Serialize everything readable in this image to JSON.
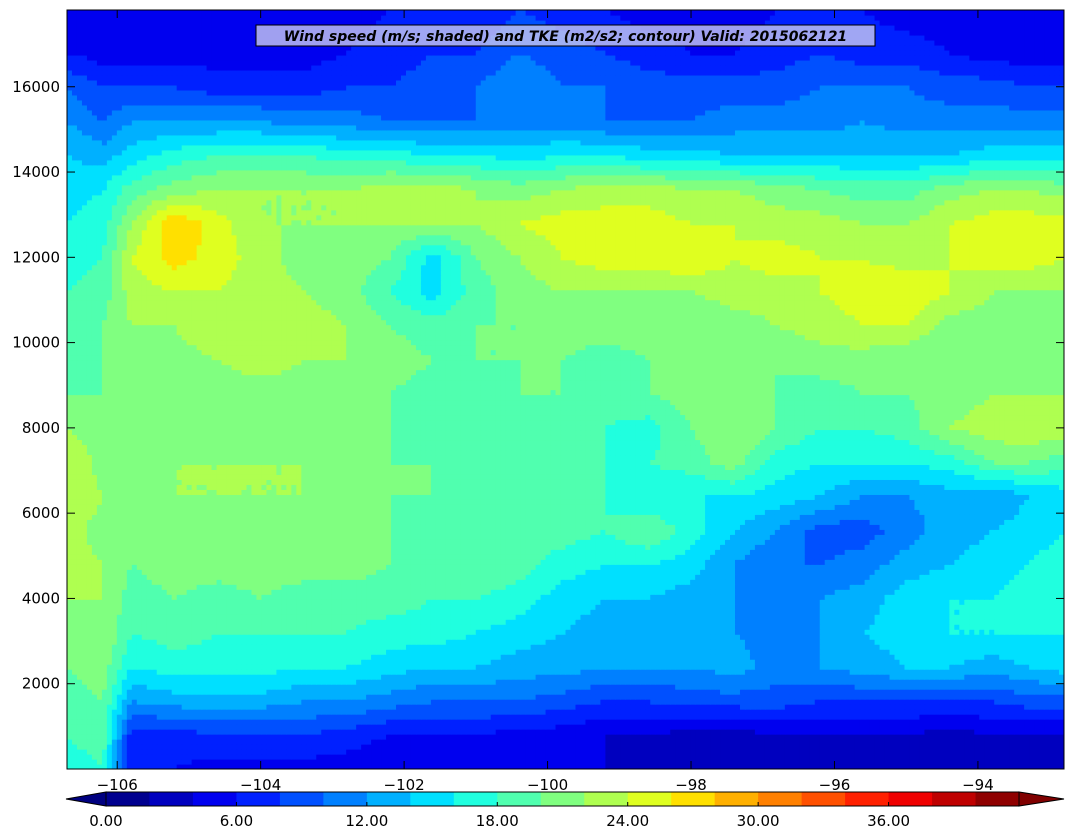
{
  "chart_data": {
    "type": "heatmap",
    "title": "Wind speed (m/s; shaded) and TKE (m2/s2; contour) Valid: 2015062121",
    "xlabel": "",
    "ylabel": "",
    "xlim": [
      -106.7,
      -92.8
    ],
    "ylim": [
      0,
      17800
    ],
    "x_ticks": [
      -106,
      -104,
      -102,
      -100,
      -98,
      -96,
      -94
    ],
    "x_tick_labels": [
      "−106",
      "−104",
      "−102",
      "−100",
      "−98",
      "−96",
      "−94"
    ],
    "y_ticks": [
      2000,
      4000,
      6000,
      8000,
      10000,
      12000,
      14000,
      16000
    ],
    "y_tick_labels": [
      "2000",
      "4000",
      "6000",
      "8000",
      "10000",
      "12000",
      "14000",
      "16000"
    ],
    "colorbar": {
      "min": 0,
      "max": 42,
      "step": 2,
      "extend": "both",
      "ticks": [
        0,
        6,
        12,
        18,
        24,
        30,
        36
      ],
      "tick_labels": [
        "0.00",
        "6.00",
        "12.00",
        "18.00",
        "24.00",
        "30.00",
        "36.00"
      ],
      "colors": [
        "#00008f",
        "#0000bf",
        "#0000ef",
        "#0020ff",
        "#0050ff",
        "#0080ff",
        "#00b0ff",
        "#00e0ff",
        "#20ffdf",
        "#50ffaf",
        "#80ff80",
        "#afff50",
        "#dfff20",
        "#ffe000",
        "#ffb000",
        "#ff8000",
        "#ff5000",
        "#ff2000",
        "#ef0000",
        "#bf0000",
        "#8f0000"
      ],
      "under_color": "#000080",
      "over_color": "#800000"
    },
    "grid": false,
    "x": [
      -106.7,
      -106.2,
      -105.8,
      -105.2,
      -104.6,
      -104.0,
      -103.4,
      -102.8,
      -102.2,
      -101.6,
      -101.0,
      -100.4,
      -99.8,
      -99.2,
      -98.6,
      -98.0,
      -97.4,
      -96.8,
      -96.2,
      -95.6,
      -95.0,
      -94.4,
      -93.8,
      -93.3,
      -92.8
    ],
    "y": [
      0,
      800,
      1600,
      2400,
      3200,
      4000,
      4800,
      5600,
      6400,
      7200,
      8000,
      8800,
      9600,
      10400,
      11200,
      12000,
      12800,
      13600,
      14400,
      15200,
      16000,
      16800,
      17800
    ],
    "z": [
      [
        17,
        18,
        6,
        6,
        5,
        5,
        5,
        5,
        4,
        4,
        4,
        4,
        4,
        4,
        3,
        3,
        3,
        3,
        2,
        3,
        2,
        2,
        2,
        3,
        3
      ],
      [
        18,
        19,
        7,
        7,
        8,
        8,
        8,
        7,
        6,
        6,
        6,
        5,
        5,
        4,
        4,
        3,
        3,
        4,
        4,
        4,
        4,
        3,
        4,
        4,
        4
      ],
      [
        19,
        20,
        12,
        13,
        13,
        13,
        12,
        12,
        11,
        10,
        10,
        10,
        9,
        8,
        8,
        9,
        9,
        9,
        8,
        8,
        8,
        8,
        8,
        9,
        9
      ],
      [
        20,
        21,
        16,
        17,
        17,
        17,
        16,
        16,
        15,
        14,
        14,
        13,
        13,
        12,
        12,
        12,
        13,
        11,
        12,
        13,
        14,
        14,
        13,
        14,
        15
      ],
      [
        21,
        22,
        18,
        19,
        18,
        18,
        18,
        18,
        17,
        17,
        16,
        15,
        14,
        13,
        13,
        12,
        12,
        11,
        12,
        14,
        15,
        16,
        16,
        16,
        16
      ],
      [
        22,
        22,
        19,
        20,
        19,
        20,
        19,
        19,
        19,
        18,
        18,
        17,
        15,
        14,
        14,
        13,
        12,
        11,
        12,
        13,
        15,
        16,
        16,
        17,
        17
      ],
      [
        23,
        22,
        20,
        21,
        21,
        21,
        21,
        21,
        20,
        20,
        20,
        19,
        17,
        16,
        16,
        15,
        12,
        10,
        10,
        11,
        13,
        14,
        15,
        16,
        17
      ],
      [
        23,
        21,
        21,
        21,
        21,
        21,
        20,
        20,
        20,
        19,
        20,
        19,
        19,
        18,
        20,
        17,
        14,
        12,
        9,
        9,
        11,
        13,
        14,
        15,
        16
      ],
      [
        24,
        22,
        21,
        22,
        22,
        22,
        22,
        21,
        20,
        20,
        19,
        20,
        19,
        18,
        16,
        16,
        16,
        15,
        14,
        12,
        12,
        13,
        12,
        14,
        15
      ],
      [
        24,
        21,
        21,
        22,
        22,
        22,
        22,
        21,
        20,
        20,
        19,
        19,
        19,
        18,
        18,
        19,
        21,
        17,
        16,
        16,
        16,
        17,
        20,
        20,
        19
      ],
      [
        22,
        21,
        20,
        21,
        21,
        21,
        21,
        20,
        20,
        19,
        18,
        19,
        18,
        18,
        17,
        20,
        22,
        20,
        18,
        18,
        19,
        22,
        23,
        24,
        23
      ],
      [
        20,
        20,
        20,
        21,
        21,
        21,
        21,
        21,
        20,
        19,
        19,
        20,
        20,
        19,
        20,
        21,
        21,
        20,
        19,
        20,
        20,
        21,
        22,
        22,
        22
      ],
      [
        19,
        20,
        21,
        21,
        22,
        23,
        22,
        22,
        21,
        20,
        20,
        20,
        20,
        19,
        20,
        20,
        21,
        20,
        21,
        21,
        20,
        20,
        21,
        21,
        21
      ],
      [
        18,
        20,
        22,
        22,
        24,
        24,
        23,
        22,
        20,
        19,
        20,
        20,
        21,
        21,
        21,
        20,
        21,
        22,
        23,
        24,
        24,
        21,
        21,
        21,
        21
      ],
      [
        18,
        19,
        23,
        24,
        24,
        23,
        22,
        21,
        18,
        15,
        19,
        21,
        22,
        22,
        22,
        22,
        23,
        23,
        24,
        25,
        26,
        24,
        22,
        22,
        22
      ],
      [
        17,
        18,
        24,
        27,
        25,
        23,
        21,
        21,
        20,
        15,
        20,
        22,
        24,
        25,
        25,
        26,
        24,
        25,
        24,
        24,
        23,
        24,
        25,
        25,
        24
      ],
      [
        16,
        17,
        22,
        28,
        25,
        22,
        22,
        22,
        22,
        22,
        22,
        24,
        25,
        25,
        25,
        24,
        24,
        23,
        23,
        22,
        22,
        24,
        25,
        25,
        25
      ],
      [
        15,
        16,
        19,
        21,
        22,
        22,
        22,
        22,
        23,
        23,
        22,
        21,
        22,
        23,
        23,
        22,
        22,
        21,
        20,
        19,
        19,
        21,
        22,
        22,
        21
      ],
      [
        14,
        13,
        15,
        17,
        18,
        18,
        18,
        17,
        17,
        16,
        16,
        15,
        16,
        16,
        15,
        15,
        14,
        14,
        14,
        14,
        14,
        14,
        15,
        15,
        15
      ],
      [
        12,
        10,
        12,
        12,
        12,
        12,
        11,
        11,
        10,
        10,
        10,
        11,
        11,
        10,
        10,
        10,
        11,
        11,
        11,
        12,
        11,
        11,
        11,
        11,
        11
      ],
      [
        10,
        8,
        8,
        8,
        7,
        7,
        7,
        8,
        8,
        9,
        10,
        12,
        10,
        10,
        9,
        9,
        9,
        9,
        10,
        10,
        10,
        9,
        9,
        8,
        8
      ],
      [
        6,
        5,
        5,
        5,
        5,
        5,
        5,
        6,
        7,
        8,
        8,
        10,
        9,
        8,
        7,
        6,
        6,
        7,
        8,
        7,
        7,
        6,
        5,
        5,
        5
      ],
      [
        5,
        4,
        4,
        4,
        4,
        4,
        4,
        5,
        6,
        6,
        6,
        8,
        7,
        6,
        5,
        5,
        5,
        6,
        7,
        6,
        5,
        5,
        4,
        4,
        4
      ]
    ]
  }
}
